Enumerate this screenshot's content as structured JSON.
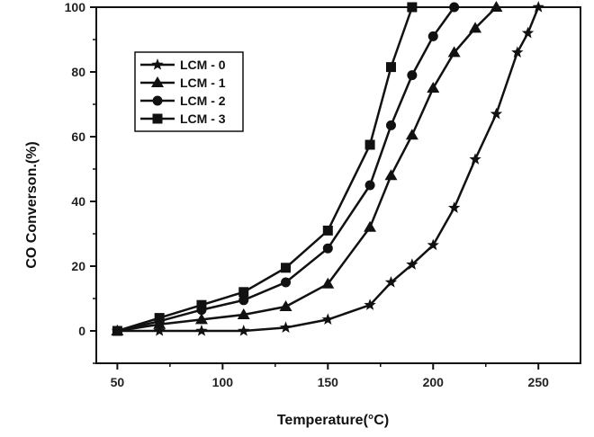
{
  "chart_data": {
    "type": "line",
    "xlabel": "Temperature",
    "xlabel_unit": "(°C)",
    "ylabel": "CO Converson.(%)",
    "xlim": [
      40,
      270
    ],
    "ylim": [
      -10,
      100
    ],
    "xticks": [
      50,
      100,
      150,
      200,
      250
    ],
    "yticks": [
      0,
      20,
      40,
      60,
      80,
      100
    ],
    "legend_position": "top-left",
    "grid": false,
    "series": [
      {
        "name": "LCM - 0",
        "marker": "star",
        "x": [
          50,
          70,
          90,
          110,
          130,
          150,
          170,
          180,
          190,
          200,
          210,
          220,
          230,
          240,
          245,
          250
        ],
        "y": [
          0,
          0,
          0,
          0,
          1,
          3.5,
          8,
          15,
          20.5,
          26.5,
          38,
          53,
          67,
          86,
          92,
          100
        ]
      },
      {
        "name": "LCM - 1",
        "marker": "triangle",
        "x": [
          50,
          70,
          90,
          110,
          130,
          150,
          170,
          180,
          190,
          200,
          210,
          220,
          230
        ],
        "y": [
          0,
          2,
          3.5,
          5,
          7.5,
          14.5,
          32,
          48,
          60.5,
          75,
          86,
          93.5,
          100
        ]
      },
      {
        "name": "LCM - 2",
        "marker": "circle",
        "x": [
          50,
          70,
          90,
          110,
          130,
          150,
          170,
          180,
          190,
          200,
          210
        ],
        "y": [
          0,
          3,
          6.5,
          9.5,
          15,
          25.5,
          45,
          63.5,
          79,
          91,
          100
        ]
      },
      {
        "name": "LCM - 3",
        "marker": "square",
        "x": [
          50,
          70,
          90,
          110,
          130,
          150,
          170,
          180,
          190
        ],
        "y": [
          0,
          4,
          8,
          12,
          19.5,
          31,
          57.5,
          81.5,
          100
        ]
      }
    ]
  }
}
